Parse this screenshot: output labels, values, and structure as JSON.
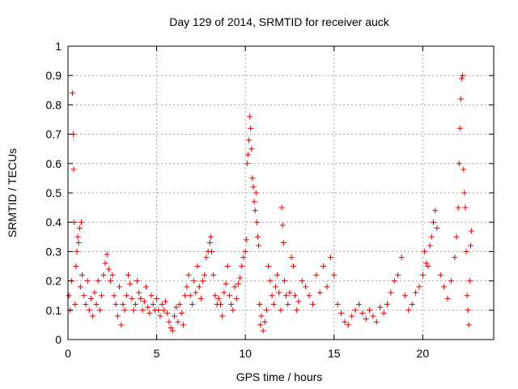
{
  "chart_data": {
    "type": "scatter",
    "title": "Day 129 of 2014, SRMTID for receiver auck",
    "xlabel": "GPS time / hours",
    "ylabel": "SRMTID / TECUs",
    "xlim": [
      0,
      24
    ],
    "ylim": [
      0,
      1
    ],
    "x_ticks": [
      {
        "value": 0,
        "label": "0"
      },
      {
        "value": 5,
        "label": "5"
      },
      {
        "value": 10,
        "label": "10"
      },
      {
        "value": 15,
        "label": "15"
      },
      {
        "value": 20,
        "label": "20"
      }
    ],
    "y_ticks": [
      {
        "value": 0,
        "label": "0"
      },
      {
        "value": 0.1,
        "label": "0.1"
      },
      {
        "value": 0.2,
        "label": "0.2"
      },
      {
        "value": 0.3,
        "label": "0.3"
      },
      {
        "value": 0.4,
        "label": "0.4"
      },
      {
        "value": 0.5,
        "label": "0.5"
      },
      {
        "value": 0.6,
        "label": "0.6"
      },
      {
        "value": 0.7,
        "label": "0.7"
      },
      {
        "value": 0.8,
        "label": "0.8"
      },
      {
        "value": 0.9,
        "label": "0.9"
      },
      {
        "value": 1,
        "label": "1"
      }
    ],
    "grid": true,
    "marker": "+",
    "color": "#e00000",
    "series": [
      {
        "name": "SRMTID",
        "points": [
          [
            0.05,
            0.15
          ],
          [
            0.12,
            0.1
          ],
          [
            0.2,
            0.2
          ],
          [
            0.25,
            0.84
          ],
          [
            0.3,
            0.7
          ],
          [
            0.32,
            0.58
          ],
          [
            0.35,
            0.4
          ],
          [
            0.4,
            0.12
          ],
          [
            0.45,
            0.25
          ],
          [
            0.5,
            0.3
          ],
          [
            0.55,
            0.35
          ],
          [
            0.6,
            0.33
          ],
          [
            0.65,
            0.38
          ],
          [
            0.7,
            0.18
          ],
          [
            0.75,
            0.4
          ],
          [
            0.8,
            0.22
          ],
          [
            0.9,
            0.15
          ],
          [
            1.0,
            0.12
          ],
          [
            1.1,
            0.2
          ],
          [
            1.2,
            0.1
          ],
          [
            1.3,
            0.14
          ],
          [
            1.4,
            0.08
          ],
          [
            1.5,
            0.16
          ],
          [
            1.6,
            0.12
          ],
          [
            1.7,
            0.2
          ],
          [
            1.8,
            0.1
          ],
          [
            1.9,
            0.15
          ],
          [
            2.0,
            0.22
          ],
          [
            2.1,
            0.26
          ],
          [
            2.2,
            0.29
          ],
          [
            2.3,
            0.24
          ],
          [
            2.4,
            0.2
          ],
          [
            2.5,
            0.22
          ],
          [
            2.6,
            0.15
          ],
          [
            2.7,
            0.12
          ],
          [
            2.8,
            0.08
          ],
          [
            2.9,
            0.18
          ],
          [
            3.0,
            0.05
          ],
          [
            3.1,
            0.12
          ],
          [
            3.2,
            0.1
          ],
          [
            3.3,
            0.15
          ],
          [
            3.4,
            0.22
          ],
          [
            3.5,
            0.19
          ],
          [
            3.6,
            0.14
          ],
          [
            3.7,
            0.1
          ],
          [
            3.8,
            0.12
          ],
          [
            3.9,
            0.2
          ],
          [
            4.0,
            0.16
          ],
          [
            4.1,
            0.14
          ],
          [
            4.2,
            0.1
          ],
          [
            4.3,
            0.13
          ],
          [
            4.4,
            0.18
          ],
          [
            4.5,
            0.11
          ],
          [
            4.6,
            0.09
          ],
          [
            4.7,
            0.15
          ],
          [
            4.8,
            0.12
          ],
          [
            4.9,
            0.1
          ],
          [
            5.0,
            0.14
          ],
          [
            5.1,
            0.1
          ],
          [
            5.2,
            0.08
          ],
          [
            5.3,
            0.12
          ],
          [
            5.4,
            0.1
          ],
          [
            5.5,
            0.13
          ],
          [
            5.6,
            0.09
          ],
          [
            5.7,
            0.06
          ],
          [
            5.8,
            0.04
          ],
          [
            5.9,
            0.03
          ],
          [
            6.0,
            0.08
          ],
          [
            6.1,
            0.11
          ],
          [
            6.2,
            0.06
          ],
          [
            6.3,
            0.12
          ],
          [
            6.4,
            0.09
          ],
          [
            6.5,
            0.05
          ],
          [
            6.6,
            0.15
          ],
          [
            6.7,
            0.18
          ],
          [
            6.8,
            0.22
          ],
          [
            6.9,
            0.15
          ],
          [
            7.0,
            0.12
          ],
          [
            7.1,
            0.2
          ],
          [
            7.2,
            0.16
          ],
          [
            7.3,
            0.25
          ],
          [
            7.4,
            0.18
          ],
          [
            7.5,
            0.14
          ],
          [
            7.6,
            0.2
          ],
          [
            7.7,
            0.22
          ],
          [
            7.8,
            0.28
          ],
          [
            7.9,
            0.3
          ],
          [
            8.0,
            0.33
          ],
          [
            8.05,
            0.35
          ],
          [
            8.1,
            0.3
          ],
          [
            8.2,
            0.22
          ],
          [
            8.3,
            0.15
          ],
          [
            8.4,
            0.12
          ],
          [
            8.5,
            0.14
          ],
          [
            8.6,
            0.12
          ],
          [
            8.7,
            0.08
          ],
          [
            8.8,
            0.16
          ],
          [
            8.9,
            0.19
          ],
          [
            9.0,
            0.25
          ],
          [
            9.1,
            0.15
          ],
          [
            9.2,
            0.12
          ],
          [
            9.3,
            0.1
          ],
          [
            9.4,
            0.18
          ],
          [
            9.5,
            0.14
          ],
          [
            9.6,
            0.19
          ],
          [
            9.7,
            0.21
          ],
          [
            9.8,
            0.25
          ],
          [
            9.9,
            0.28
          ],
          [
            10.0,
            0.3
          ],
          [
            10.05,
            0.34
          ],
          [
            10.1,
            0.6
          ],
          [
            10.15,
            0.63
          ],
          [
            10.2,
            0.68
          ],
          [
            10.25,
            0.76
          ],
          [
            10.3,
            0.72
          ],
          [
            10.35,
            0.65
          ],
          [
            10.4,
            0.55
          ],
          [
            10.45,
            0.52
          ],
          [
            10.5,
            0.47
          ],
          [
            10.55,
            0.44
          ],
          [
            10.6,
            0.5
          ],
          [
            10.65,
            0.4
          ],
          [
            10.7,
            0.35
          ],
          [
            10.75,
            0.32
          ],
          [
            10.8,
            0.12
          ],
          [
            10.85,
            0.05
          ],
          [
            10.9,
            0.08
          ],
          [
            11.0,
            0.03
          ],
          [
            11.1,
            0.06
          ],
          [
            11.2,
            0.1
          ],
          [
            11.3,
            0.25
          ],
          [
            11.4,
            0.2
          ],
          [
            11.5,
            0.15
          ],
          [
            11.6,
            0.12
          ],
          [
            11.7,
            0.18
          ],
          [
            11.8,
            0.22
          ],
          [
            11.9,
            0.16
          ],
          [
            12.0,
            0.1
          ],
          [
            12.05,
            0.45
          ],
          [
            12.1,
            0.39
          ],
          [
            12.15,
            0.33
          ],
          [
            12.2,
            0.2
          ],
          [
            12.3,
            0.15
          ],
          [
            12.4,
            0.12
          ],
          [
            12.5,
            0.16
          ],
          [
            12.6,
            0.28
          ],
          [
            12.7,
            0.25
          ],
          [
            12.8,
            0.15
          ],
          [
            12.9,
            0.1
          ],
          [
            13.0,
            0.13
          ],
          [
            13.2,
            0.2
          ],
          [
            13.4,
            0.18
          ],
          [
            13.6,
            0.15
          ],
          [
            13.8,
            0.12
          ],
          [
            14.0,
            0.22
          ],
          [
            14.2,
            0.16
          ],
          [
            14.4,
            0.25
          ],
          [
            14.6,
            0.18
          ],
          [
            14.8,
            0.28
          ],
          [
            15.0,
            0.22
          ],
          [
            15.2,
            0.12
          ],
          [
            15.4,
            0.09
          ],
          [
            15.6,
            0.06
          ],
          [
            15.8,
            0.05
          ],
          [
            16.0,
            0.08
          ],
          [
            16.2,
            0.1
          ],
          [
            16.4,
            0.12
          ],
          [
            16.6,
            0.09
          ],
          [
            16.8,
            0.07
          ],
          [
            17.0,
            0.1
          ],
          [
            17.2,
            0.08
          ],
          [
            17.4,
            0.06
          ],
          [
            17.6,
            0.11
          ],
          [
            17.8,
            0.09
          ],
          [
            18.0,
            0.12
          ],
          [
            18.2,
            0.16
          ],
          [
            18.4,
            0.2
          ],
          [
            18.6,
            0.22
          ],
          [
            18.8,
            0.28
          ],
          [
            19.0,
            0.15
          ],
          [
            19.2,
            0.1
          ],
          [
            19.4,
            0.12
          ],
          [
            19.6,
            0.16
          ],
          [
            19.8,
            0.18
          ],
          [
            20.0,
            0.22
          ],
          [
            20.1,
            0.3
          ],
          [
            20.2,
            0.26
          ],
          [
            20.3,
            0.25
          ],
          [
            20.4,
            0.32
          ],
          [
            20.5,
            0.35
          ],
          [
            20.6,
            0.4
          ],
          [
            20.7,
            0.44
          ],
          [
            20.8,
            0.38
          ],
          [
            21.0,
            0.22
          ],
          [
            21.2,
            0.18
          ],
          [
            21.4,
            0.14
          ],
          [
            21.6,
            0.2
          ],
          [
            21.8,
            0.28
          ],
          [
            21.9,
            0.35
          ],
          [
            22.0,
            0.45
          ],
          [
            22.05,
            0.6
          ],
          [
            22.1,
            0.72
          ],
          [
            22.15,
            0.82
          ],
          [
            22.2,
            0.89
          ],
          [
            22.25,
            0.9
          ],
          [
            22.3,
            0.58
          ],
          [
            22.35,
            0.5
          ],
          [
            22.4,
            0.45
          ],
          [
            22.45,
            0.3
          ],
          [
            22.5,
            0.15
          ],
          [
            22.55,
            0.1
          ],
          [
            22.6,
            0.05
          ],
          [
            22.65,
            0.2
          ],
          [
            22.7,
            0.32
          ],
          [
            22.75,
            0.37
          ]
        ]
      }
    ]
  }
}
